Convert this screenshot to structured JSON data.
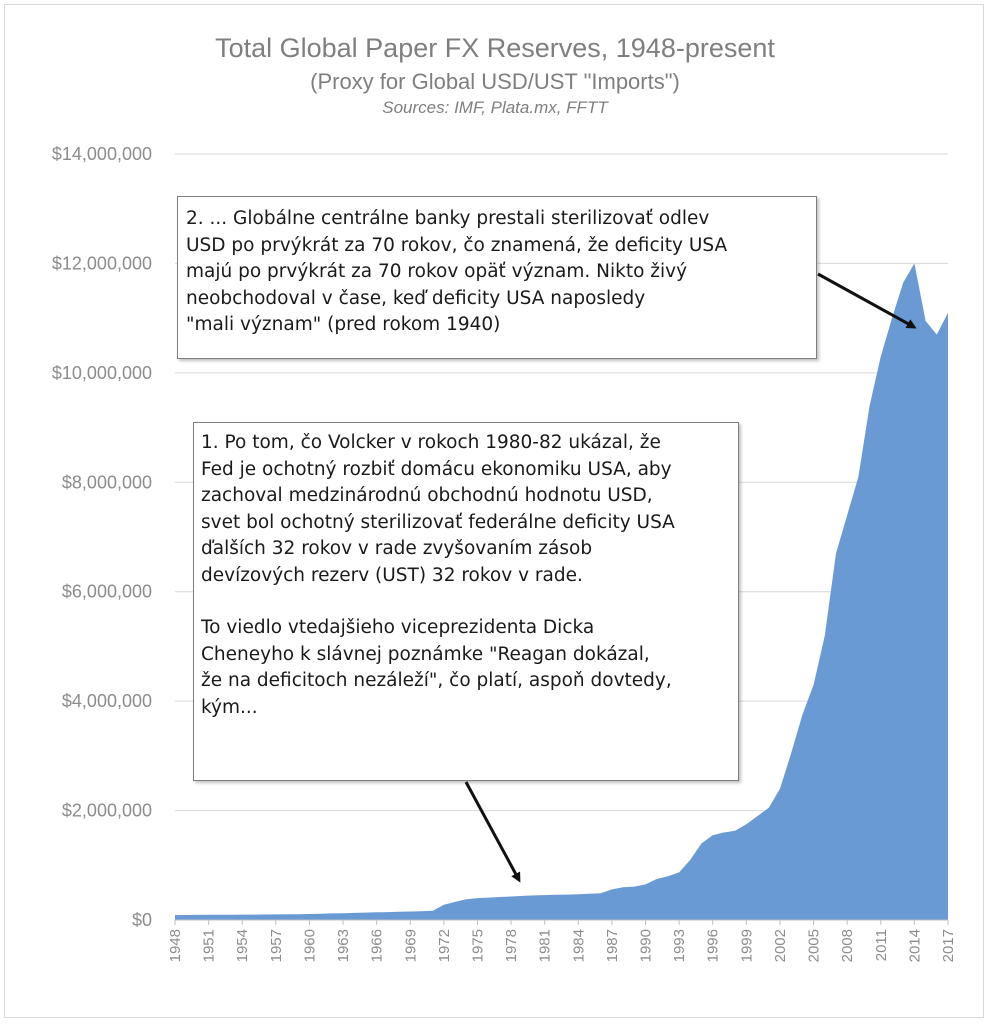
{
  "chart_data": {
    "type": "area",
    "title": "Total Global Paper FX Reserves, 1948-present",
    "subtitle": "(Proxy for Global USD/UST \"Imports\")",
    "sources": "Sources: IMF, Plata.mx, FFTT",
    "xlabel": "",
    "ylabel": "",
    "ylim": [
      0,
      14000000
    ],
    "yticks": [
      "$0",
      "$2,000,000",
      "$4,000,000",
      "$6,000,000",
      "$8,000,000",
      "$10,000,000",
      "$12,000,000",
      "$14,000,000"
    ],
    "xticks": [
      "1948",
      "1951",
      "1954",
      "1957",
      "1960",
      "1963",
      "1966",
      "1969",
      "1972",
      "1975",
      "1978",
      "1981",
      "1984",
      "1987",
      "1990",
      "1993",
      "1996",
      "1999",
      "2002",
      "2005",
      "2008",
      "2011",
      "2014",
      "2017"
    ],
    "grid": true,
    "color": "#6a9ad3",
    "x": [
      1948,
      1949,
      1950,
      1951,
      1952,
      1953,
      1954,
      1955,
      1956,
      1957,
      1958,
      1959,
      1960,
      1961,
      1962,
      1963,
      1964,
      1965,
      1966,
      1967,
      1968,
      1969,
      1970,
      1971,
      1972,
      1973,
      1974,
      1975,
      1976,
      1977,
      1978,
      1979,
      1980,
      1981,
      1982,
      1983,
      1984,
      1985,
      1986,
      1987,
      1988,
      1989,
      1990,
      1991,
      1992,
      1993,
      1994,
      1995,
      1996,
      1997,
      1998,
      1999,
      2000,
      2001,
      2002,
      2003,
      2004,
      2005,
      2006,
      2007,
      2008,
      2009,
      2010,
      2011,
      2012,
      2013,
      2014,
      2015,
      2016,
      2017
    ],
    "values": [
      90000,
      92000,
      93000,
      95000,
      96000,
      97000,
      98000,
      99000,
      100000,
      102000,
      104000,
      106000,
      110000,
      115000,
      120000,
      125000,
      130000,
      135000,
      140000,
      145000,
      150000,
      155000,
      160000,
      170000,
      280000,
      330000,
      380000,
      400000,
      410000,
      420000,
      430000,
      440000,
      450000,
      455000,
      460000,
      465000,
      470000,
      480000,
      490000,
      560000,
      600000,
      610000,
      650000,
      750000,
      800000,
      870000,
      1100000,
      1400000,
      1550000,
      1600000,
      1630000,
      1750000,
      1900000,
      2050000,
      2400000,
      3050000,
      3750000,
      4300000,
      5200000,
      6700000,
      7400000,
      8100000,
      9400000,
      10300000,
      11000000,
      11650000,
      12000000,
      10950000,
      10700000,
      11100000
    ]
  },
  "annotations": [
    {
      "text": "2. ... Globálne centrálne banky prestali sterilizovať odlev\nUSD po prvýkrát za 70 rokov, čo znamená, že deficity USA\nmajú po prvýkrát za 70 rokov opäť význam. Nikto živý\nneobchodoval v čase, keď deficity USA naposledy\n\"mali význam\" (pred rokom 1940)"
    },
    {
      "text": "1. Po tom, čo Volcker v rokoch 1980-82 ukázal, že\nFed je ochotný rozbiť domácu ekonomiku USA, aby\nzachoval medzinárodnú obchodnú hodnotu USD,\nsvet bol ochotný sterilizovať federálne deficity USA\nďalších 32 rokov v rade zvyšovaním zásob\ndevízových rezerv (UST) 32 rokov v rade.",
      "text2": "To viedlo vtedajšieho viceprezidenta Dicka\nCheneyho k slávnej poznámke \"Reagan dokázal,\nže na deficitoch nezáleží\", čo platí, aspoň dovtedy,\nkým..."
    }
  ]
}
